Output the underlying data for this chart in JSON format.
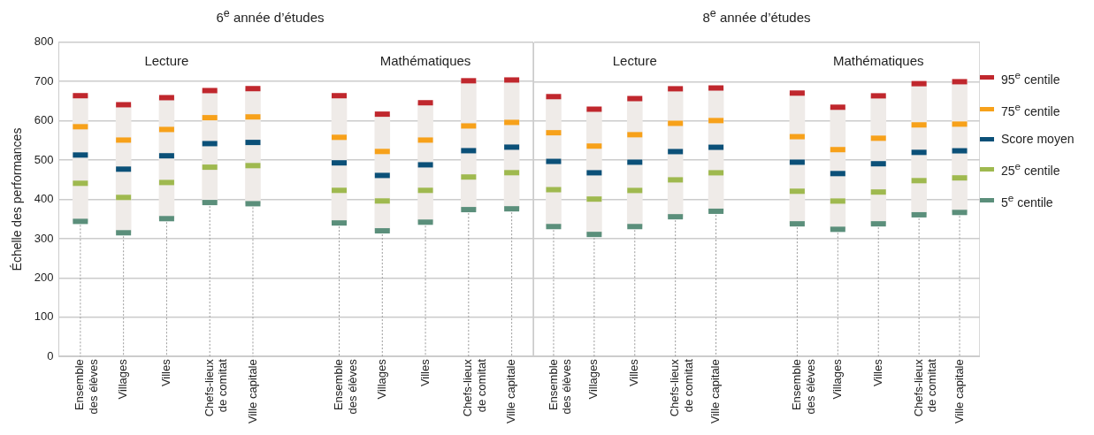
{
  "chart_data": [
    {
      "type": "scatter",
      "title": "6$^{e}$ année d’études",
      "ylabel": "Échelle des performances",
      "annotations": [
        "Lecture",
        "Mathématiques"
      ],
      "categories": [
        "Ensemble des élèves",
        "Villages",
        "Villes",
        "Chefs-lieux de comitat",
        "Ville capitale",
        null,
        "Ensemble des élèves",
        "Villages",
        "Villes",
        "Chefs-lieux de comitat",
        "Ville capitale"
      ],
      "ylim": [
        0,
        800
      ],
      "yticks": [
        0,
        100,
        200,
        300,
        400,
        500,
        600,
        700,
        800
      ],
      "grid": "y",
      "legend": false,
      "series": [
        {
          "color": "#c0272d",
          "values": [
            664,
            641,
            659,
            677,
            682,
            null,
            664,
            617,
            646,
            702,
            704
          ]
        },
        {
          "color": "#f7a11a",
          "values": [
            585,
            551,
            578,
            608,
            610,
            null,
            558,
            522,
            551,
            587,
            596
          ]
        },
        {
          "color": "#0b5078",
          "values": [
            513,
            477,
            511,
            542,
            545,
            null,
            493,
            461,
            488,
            524,
            533
          ]
        },
        {
          "color": "#9fb94f",
          "values": [
            441,
            405,
            443,
            482,
            486,
            null,
            423,
            396,
            423,
            457,
            468
          ]
        },
        {
          "color": "#5b8f7b",
          "values": [
            344,
            315,
            351,
            392,
            389,
            null,
            340,
            320,
            342,
            374,
            376
          ]
        },
        {
          "type": "bar",
          "color": "#efebe8",
          "base": [
            344,
            315,
            351,
            392,
            389,
            null,
            340,
            320,
            342,
            374,
            376
          ],
          "values": [
            320,
            326,
            308,
            285,
            293,
            null,
            324,
            297,
            304,
            328,
            328
          ]
        }
      ]
    },
    {
      "type": "scatter",
      "title": "8$^{e}$ année d’études",
      "annotations": [
        "Lecture",
        "Mathématiques"
      ],
      "categories": [
        "Ensemble des élèves",
        "Villages",
        "Villes",
        "Chefs-lieux de comitat",
        "Ville capitale",
        null,
        "Ensemble des élèves",
        "Villages",
        "Villes",
        "Chefs-lieux de comitat",
        "Ville capitale"
      ],
      "ylim": [
        0,
        800
      ],
      "yticks": [
        0,
        100,
        200,
        300,
        400,
        500,
        600,
        700,
        800
      ],
      "grid": "y",
      "legend": "right",
      "tick_labels": "x",
      "series": [
        {
          "name": "95$^{e}$ centile",
          "color": "#c0272d",
          "values": [
            662,
            630,
            657,
            682,
            684,
            null,
            671,
            635,
            664,
            695,
            700
          ]
        },
        {
          "name": "75$^{e}$ centile",
          "color": "#f7a11a",
          "values": [
            570,
            536,
            565,
            594,
            601,
            null,
            560,
            527,
            556,
            590,
            592
          ]
        },
        {
          "name": "Score moyen",
          "color": "#0b5078",
          "values": [
            497,
            468,
            495,
            522,
            533,
            null,
            495,
            466,
            491,
            520,
            524
          ]
        },
        {
          "name": "25$^{e}$ centile",
          "color": "#9fb94f",
          "values": [
            425,
            401,
            423,
            450,
            468,
            null,
            421,
            396,
            419,
            448,
            455
          ]
        },
        {
          "name": "5$^{e}$ centile",
          "color": "#5b8f7b",
          "values": [
            331,
            311,
            331,
            356,
            370,
            null,
            338,
            324,
            338,
            361,
            367
          ]
        },
        {
          "type": "bar",
          "color": "#efebe8",
          "base": [
            331,
            311,
            331,
            356,
            370,
            null,
            338,
            324,
            338,
            361,
            367
          ],
          "values": [
            331,
            319,
            326,
            326,
            314,
            null,
            333,
            311,
            326,
            334,
            333
          ]
        }
      ]
    }
  ]
}
